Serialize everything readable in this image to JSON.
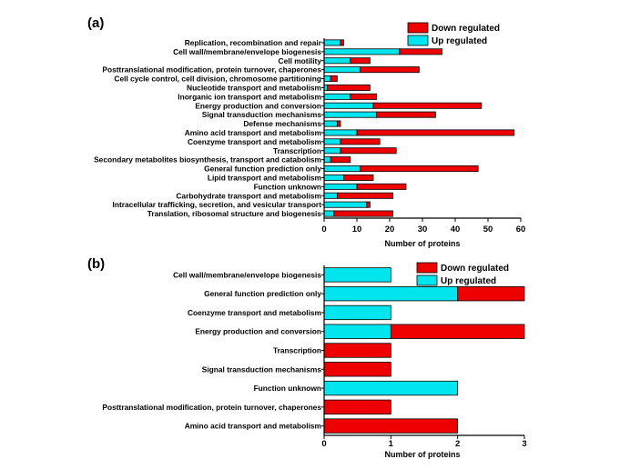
{
  "colors": {
    "up": "#00E5EE",
    "down": "#EE0000",
    "axis": "#000000"
  },
  "chart_data": [
    {
      "panel": "(a)",
      "type": "bar",
      "orientation": "horizontal",
      "stacked": true,
      "categories": [
        "Replication, recombination and repair",
        "Cell wall/membrane/envelope biogenesis",
        "Cell motility",
        "Posttranslational modification, protein turnover, chaperones",
        "Cell cycle control, cell division, chromosome partitioning",
        "Nucleotide transport and metabolism",
        "Inorganic ion transport and metabolism",
        "Energy production and conversion",
        "Signal transduction mechanisms",
        "Defense mechanisms",
        "Amino acid transport and metabolism",
        "Coenzyme transport and metabolism",
        "Transcription",
        "Secondary metabolites biosynthesis, transport and catabolism",
        "General function prediction only",
        "Lipid transport and metabolism",
        "Function unknown",
        "Carbohydrate transport and metabolism",
        "Intracellular trafficking, secretion, and vesicular transport",
        "Translation, ribosomal structure and biogenesis"
      ],
      "series": [
        {
          "name": "Up regulated",
          "values": [
            5,
            23,
            8,
            11,
            2,
            1,
            8,
            15,
            16,
            4,
            10,
            5,
            5,
            2,
            11,
            6,
            10,
            4,
            13,
            3
          ]
        },
        {
          "name": "Down regulated",
          "values": [
            1,
            13,
            6,
            18,
            2,
            13,
            8,
            33,
            18,
            1,
            48,
            12,
            17,
            6,
            36,
            9,
            15,
            17,
            1,
            18
          ]
        }
      ],
      "xlabel": "Number of proteins",
      "xlim": [
        0,
        60
      ],
      "xticks": [
        "0",
        "10",
        "20",
        "30",
        "40",
        "50",
        "60"
      ],
      "legend": [
        "Down regulated",
        "Up regulated"
      ],
      "legend_position": "top-right"
    },
    {
      "panel": "(b)",
      "type": "bar",
      "orientation": "horizontal",
      "stacked": true,
      "categories": [
        "Cell wall/membrane/envelope biogenesis",
        "General function prediction only",
        "Coenzyme transport and metabolism",
        "Energy production and conversion",
        "Transcription",
        "Signal transduction mechanisms",
        "Function unknown",
        "Posttranslational modification, protein turnover, chaperones",
        "Amino acid transport and metabolism"
      ],
      "series": [
        {
          "name": "Up regulated",
          "values": [
            1,
            2,
            1,
            1,
            0,
            0,
            2,
            0,
            0
          ]
        },
        {
          "name": "Down regulated",
          "values": [
            0,
            1,
            0,
            2,
            1,
            1,
            0,
            1,
            2
          ]
        }
      ],
      "xlabel": "Number of proteins",
      "xlim": [
        0,
        3
      ],
      "xticks": [
        "0",
        "1",
        "2",
        "3"
      ],
      "legend": [
        "Down regulated",
        "Up regulated"
      ],
      "legend_position": "top-right"
    }
  ]
}
